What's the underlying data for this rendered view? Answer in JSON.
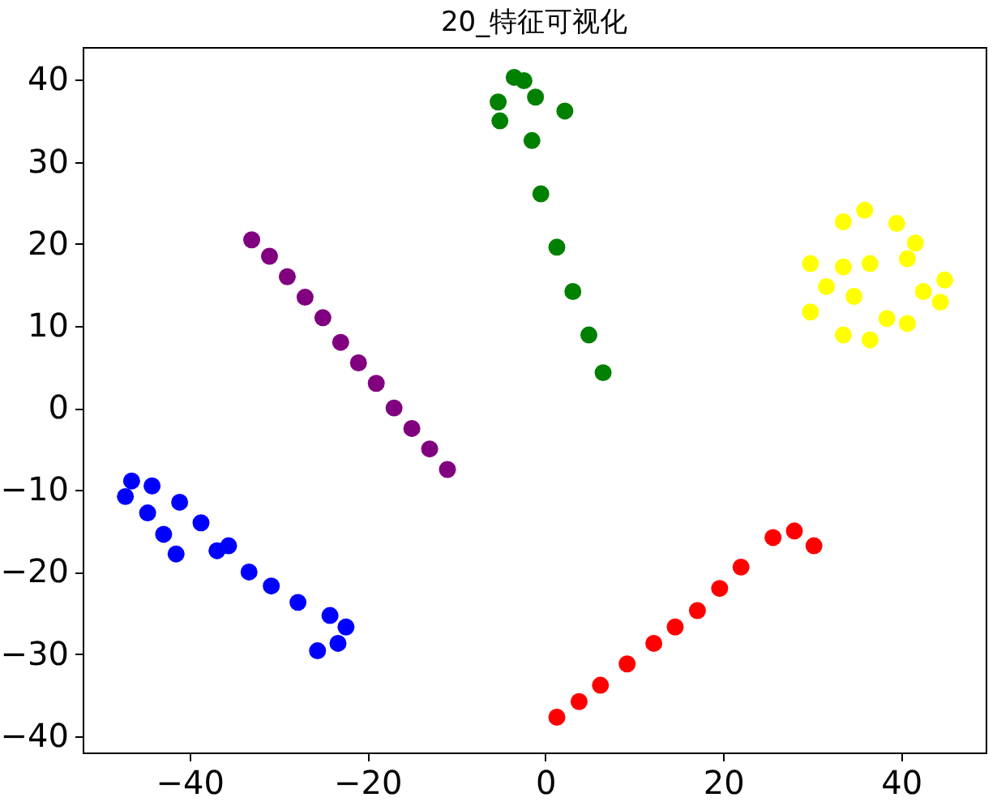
{
  "chart_data": {
    "type": "scatter",
    "title": "20_特征可视化",
    "xlim": [
      -52,
      49.5
    ],
    "ylim": [
      -42,
      44
    ],
    "xticks": [
      -40,
      -20,
      0,
      20,
      40
    ],
    "yticks": [
      -40,
      -30,
      -20,
      -10,
      0,
      10,
      20,
      30,
      40
    ],
    "grid": false,
    "legend": false,
    "marker": "circle",
    "series": [
      {
        "color": "#800080",
        "x": [
          -33,
          -31,
          -29,
          -27,
          -25,
          -23,
          -21,
          -19,
          -17,
          -15,
          -13,
          -11
        ],
        "values": [
          20.5,
          18.5,
          16,
          13.5,
          11,
          8,
          5.5,
          3,
          0,
          -2.5,
          -5,
          -7.5
        ]
      },
      {
        "color": "#0000ff",
        "x": [
          -46.5,
          -47.2,
          -44.2,
          -41.1,
          -38.7,
          -35.6,
          -33.3,
          -30.8,
          -27.8,
          -24.2,
          -22.4,
          -23.3,
          -25.6,
          -44.7,
          -42.9,
          -41.5,
          -36.9
        ],
        "values": [
          -8.9,
          -10.8,
          -9.5,
          -11.5,
          -14,
          -16.8,
          -20,
          -21.7,
          -23.7,
          -25.3,
          -26.7,
          -28.7,
          -29.6,
          -12.8,
          -15.4,
          -17.8,
          -17.4
        ]
      },
      {
        "color": "#008000",
        "x": [
          -5.3,
          -5.1,
          -3.5,
          -2.4,
          -1.1,
          -1.5,
          -0.5,
          1.3,
          3.1,
          4.9,
          6.5,
          2.2
        ],
        "values": [
          37.3,
          35,
          40.3,
          39.9,
          37.9,
          32.6,
          26.1,
          19.6,
          14.2,
          8.9,
          4.3,
          36.2
        ]
      },
      {
        "color": "#ffff00",
        "x": [
          29.8,
          29.8,
          33.5,
          36.5,
          40.7,
          44.4,
          44.9,
          33.5,
          35.9,
          39.5,
          41.6,
          40.7,
          36.5,
          33.5,
          34.7,
          31.6,
          42.5,
          38.4
        ],
        "values": [
          17.6,
          11.7,
          8.9,
          8.3,
          10.3,
          12.9,
          15.6,
          22.7,
          24.1,
          22.5,
          20.1,
          18.2,
          17.6,
          17.2,
          13.6,
          14.8,
          14.2,
          10.9
        ]
      },
      {
        "color": "#ff0000",
        "x": [
          1.3,
          3.8,
          6.2,
          9.2,
          12.2,
          14.6,
          17.1,
          19.6,
          22,
          25.6,
          28,
          30.2
        ],
        "values": [
          -37.7,
          -35.8,
          -33.8,
          -31.2,
          -28.7,
          -26.7,
          -24.7,
          -22,
          -19.4,
          -15.8,
          -15,
          -16.8
        ]
      }
    ]
  }
}
